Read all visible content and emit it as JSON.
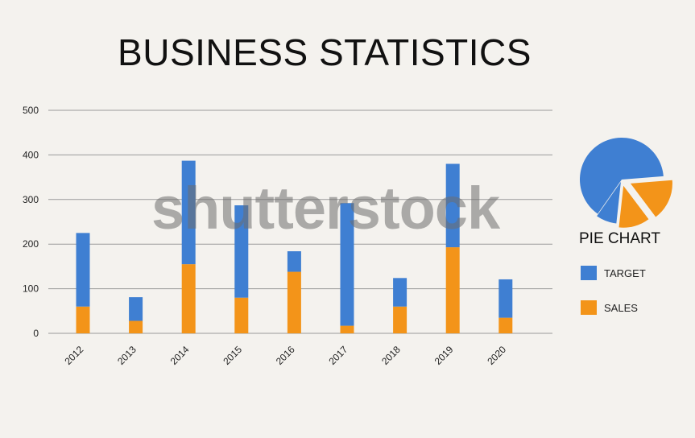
{
  "chart_data": {
    "type": "bar",
    "stacked": true,
    "title": "BUSINESS STATISTICS",
    "categories": [
      "2012",
      "2013",
      "2014",
      "2015",
      "2016",
      "2017",
      "2018",
      "2019",
      "2020"
    ],
    "series": [
      {
        "name": "SALES",
        "color": "#f39419",
        "values": [
          60,
          28,
          155,
          80,
          138,
          17,
          60,
          193,
          35
        ]
      },
      {
        "name": "TARGET",
        "color": "#3f7fd2",
        "values": [
          165,
          53,
          232,
          207,
          46,
          275,
          64,
          187,
          86
        ]
      }
    ],
    "ylim": [
      0,
      500
    ],
    "yticks": [
      0,
      100,
      200,
      300,
      400,
      500
    ],
    "grid": true,
    "pie": {
      "label": "PIE CHART",
      "slices": [
        {
          "name": "TARGET",
          "color": "#3f7fd2",
          "value": 64
        },
        {
          "name": "SALES",
          "color": "#f39419",
          "value": 16
        },
        {
          "name": "SALES",
          "color": "#f39419",
          "value": 12
        },
        {
          "name": "TARGET",
          "color": "#3f7fd2",
          "value": 8
        }
      ]
    },
    "legend": [
      {
        "label": "TARGET",
        "color": "#3f7fd2"
      },
      {
        "label": "SALES",
        "color": "#f39419"
      }
    ]
  },
  "watermark": "shutterstock"
}
